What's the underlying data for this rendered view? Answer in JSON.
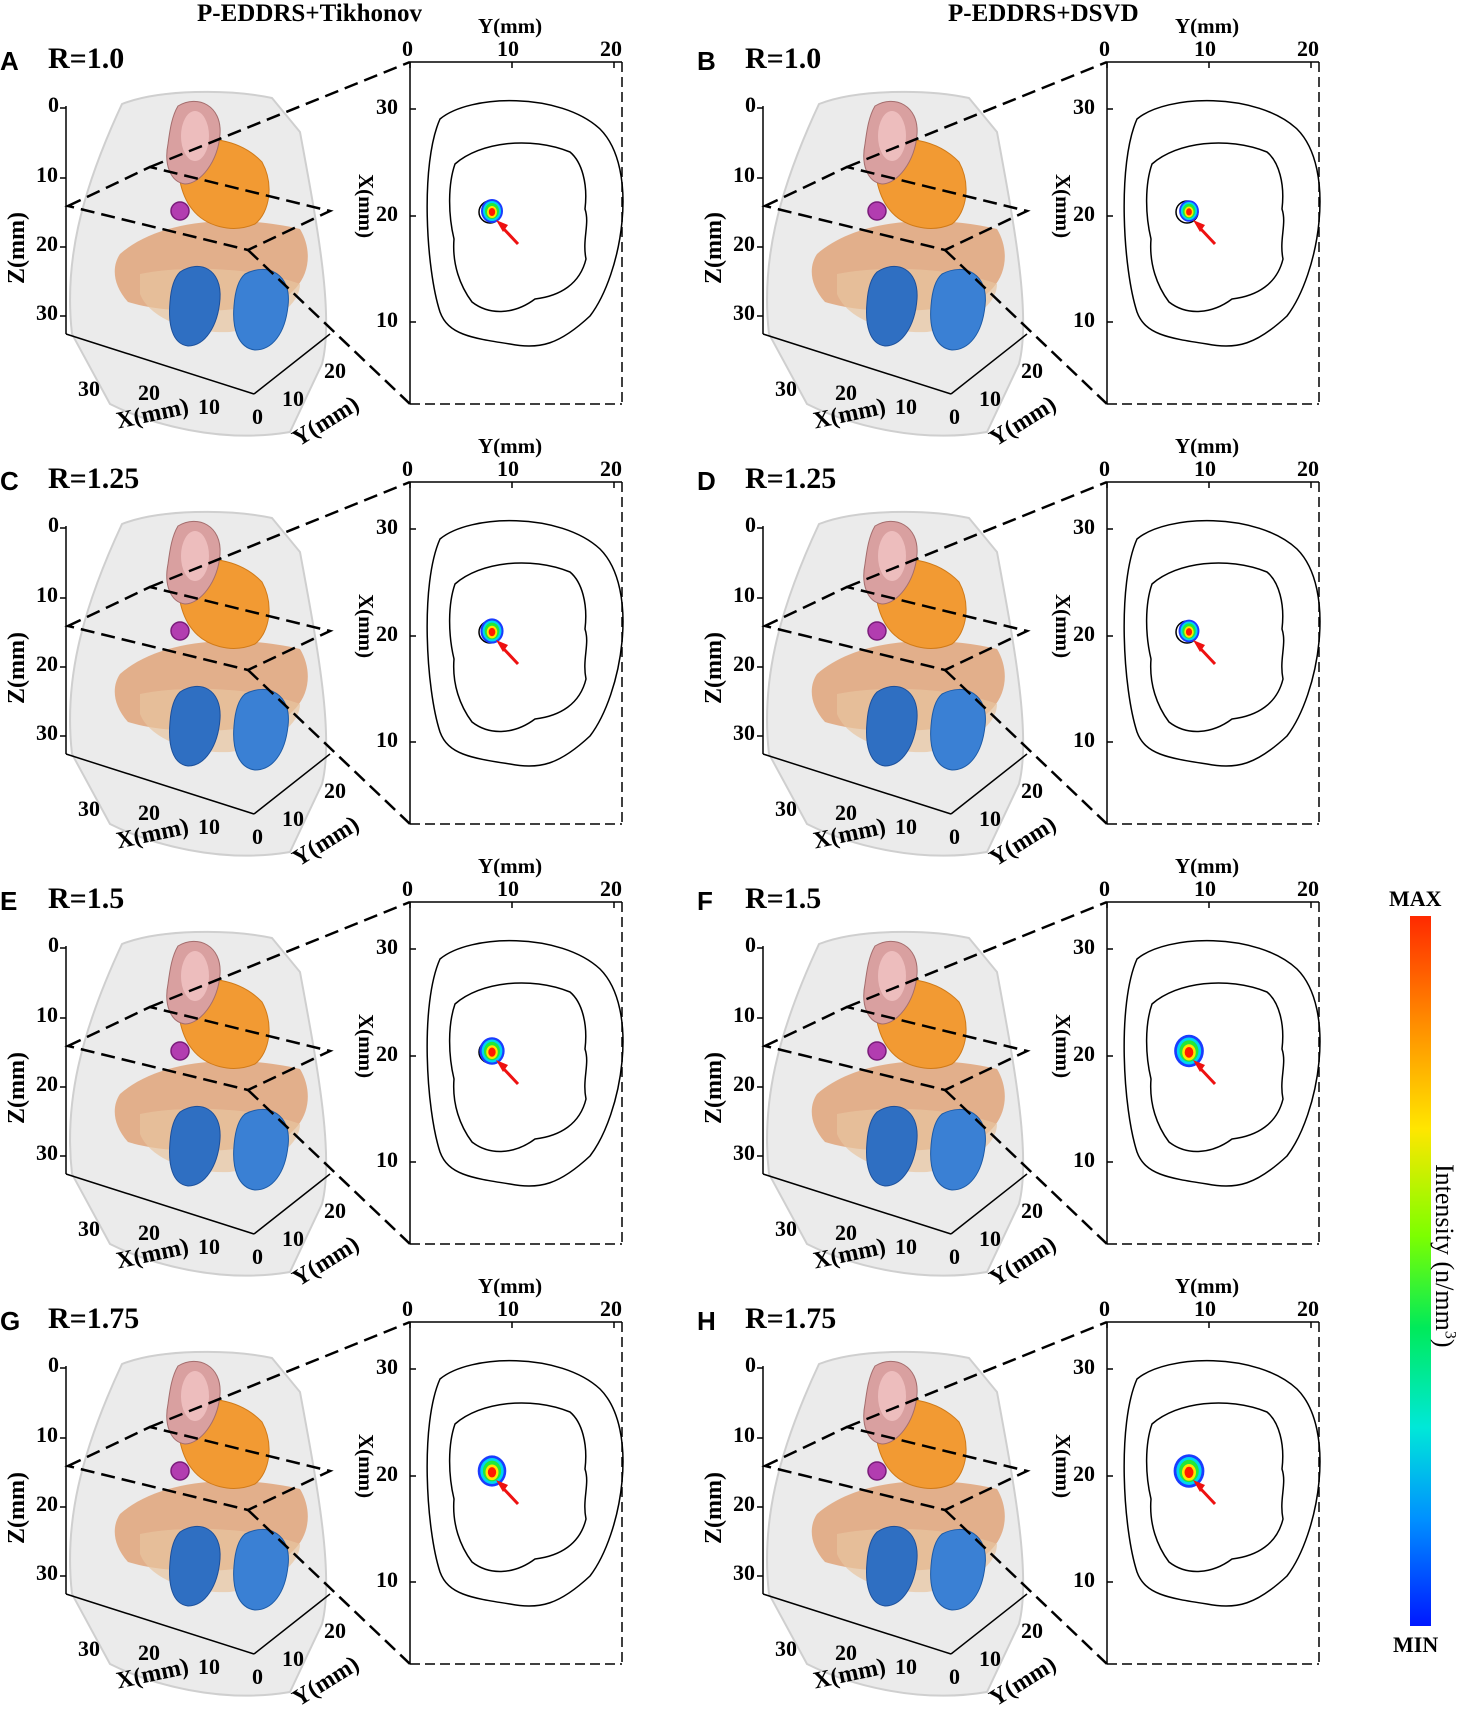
{
  "columns": [
    {
      "title": "P-EDDRS+Tikhonov"
    },
    {
      "title": "P-EDDRS+DSVD"
    }
  ],
  "panels": [
    {
      "letter": "A",
      "r_label": "R=1.0",
      "blob_scale": 1.0
    },
    {
      "letter": "B",
      "r_label": "R=1.0",
      "blob_scale": 0.9
    },
    {
      "letter": "C",
      "r_label": "R=1.25",
      "blob_scale": 1.05
    },
    {
      "letter": "D",
      "r_label": "R=1.25",
      "blob_scale": 0.95
    },
    {
      "letter": "E",
      "r_label": "R=1.5",
      "blob_scale": 1.15
    },
    {
      "letter": "F",
      "r_label": "R=1.5",
      "blob_scale": 1.35
    },
    {
      "letter": "G",
      "r_label": "R=1.75",
      "blob_scale": 1.3
    },
    {
      "letter": "H",
      "r_label": "R=1.75",
      "blob_scale": 1.4
    }
  ],
  "axes_3d": {
    "z_label": "Z(mm)",
    "z_ticks": [
      "0",
      "10",
      "20",
      "30"
    ],
    "x_label": "X(mm)",
    "x_ticks": [
      "30",
      "20",
      "10"
    ],
    "y_label": "Y(mm)",
    "y_ticks": [
      "0",
      "10",
      "20"
    ]
  },
  "axes_2d": {
    "y_label": "Y(mm)",
    "y_ticks": [
      "0",
      "10",
      "20"
    ],
    "x_label": "X(mm)",
    "x_ticks": [
      "30",
      "20",
      "10"
    ]
  },
  "colorbar": {
    "max_label": "MAX",
    "min_label": "MIN",
    "title": "Intensity (n/mm",
    "title_sup": "3",
    "title_end": ")"
  }
}
